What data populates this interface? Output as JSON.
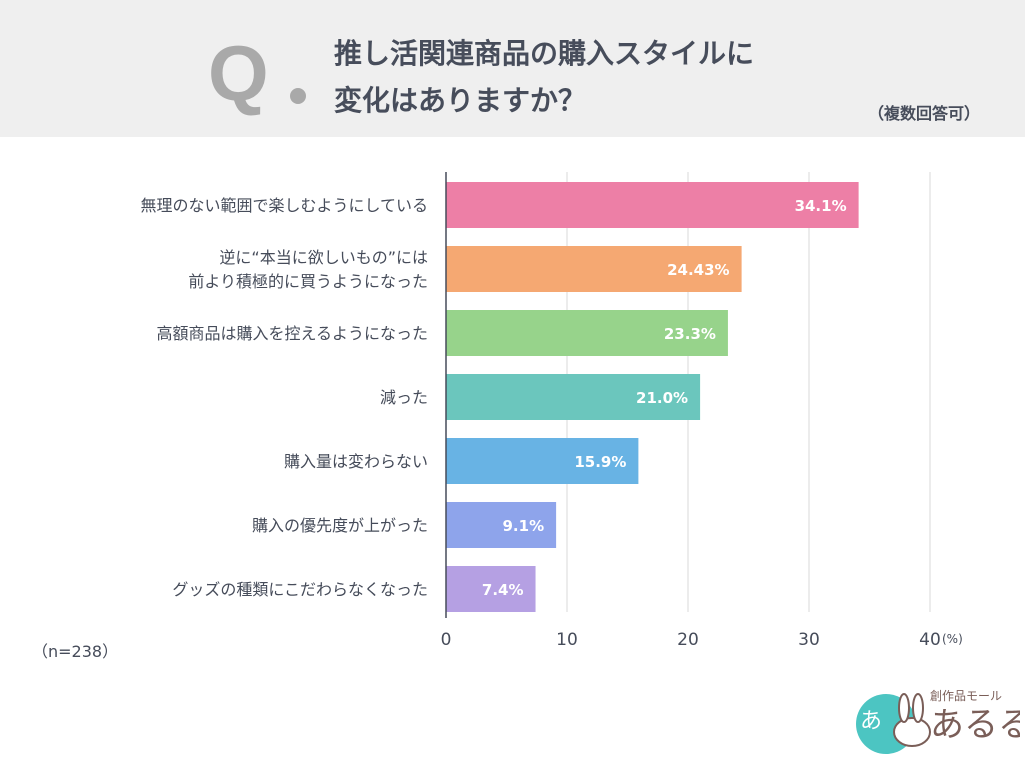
{
  "header": {
    "q_mark": "Q",
    "title_line1": "推し活関連商品の購入スタイルに",
    "title_line2": "変化はありますか？",
    "note": "（複数回答可）"
  },
  "sample": "（n=238）",
  "logo": {
    "tagline": "創作品モール",
    "name": "あるる"
  },
  "chart_data": {
    "type": "bar",
    "orientation": "horizontal",
    "categories": [
      [
        "無理のない範囲で楽しむようにしている"
      ],
      [
        "逆に“本当に欲しいもの”には",
        "前より積極的に買うようになった"
      ],
      [
        "高額商品は購入を控えるようになった"
      ],
      [
        "減った"
      ],
      [
        "購入量は変わらない"
      ],
      [
        "購入の優先度が上がった"
      ],
      [
        "グッズの種類にこだわらなくなった"
      ]
    ],
    "values": [
      34.1,
      24.43,
      23.3,
      21.0,
      15.9,
      9.1,
      7.4
    ],
    "data_labels": [
      "34.1%",
      "24.43%",
      "23.3%",
      "21.0%",
      "15.9%",
      "9.1%",
      "7.4%"
    ],
    "colors": [
      "#ed7fa6",
      "#f5a872",
      "#97d38b",
      "#6bc6bd",
      "#68b3e4",
      "#8ea4eb",
      "#b5a0e3"
    ],
    "xlim": [
      0,
      40
    ],
    "xticks": [
      "0",
      "10",
      "20",
      "30",
      "40"
    ],
    "xunit": "(%)",
    "grid": true
  }
}
